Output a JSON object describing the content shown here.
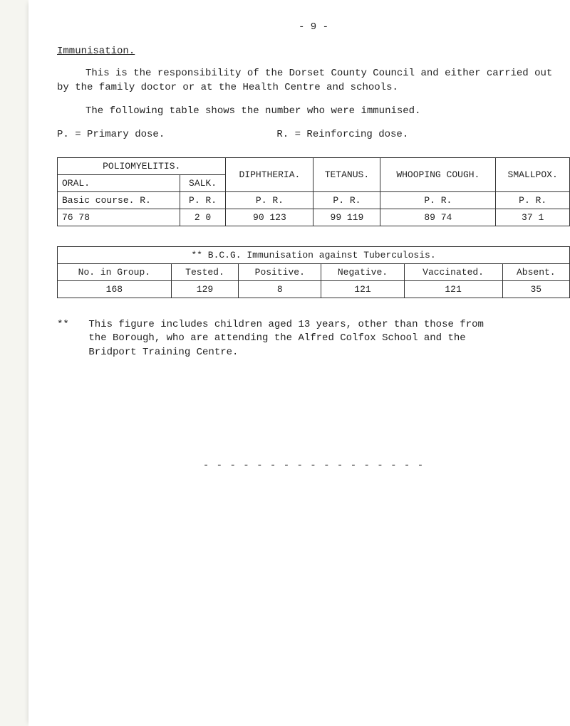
{
  "page_number": "- 9 -",
  "section_title": "Immunisation.",
  "para1": "This is the responsibility of the Dorset County Council and either carried out by the family doctor or at the Health Centre and schools.",
  "para2": "The following table shows the number who were immunised.",
  "dose_p": "P.  = Primary dose.",
  "dose_r": "R.   = Reinforcing dose.",
  "table1": {
    "headers": {
      "polio": "POLIOMYELITIS.",
      "diph": "DIPHTHERIA.",
      "tet": "TETANUS.",
      "whoop": "WHOOPING COUGH.",
      "small": "SMALLPOX.",
      "oral": "ORAL.",
      "salk": "SALK."
    },
    "row_labels": {
      "course": "Basic course.  R.",
      "salk_pr": "P.  R.",
      "pr": "P.    R."
    },
    "values": {
      "oral": "76    78",
      "salk": "2   0",
      "diph": "90    123",
      "tet": "99  119",
      "whoop": "89    74",
      "small": "37    1"
    }
  },
  "table2": {
    "banner": "** B.C.G. Immunisation against Tuberculosis.",
    "headers": {
      "group": "No. in Group.",
      "tested": "Tested.",
      "positive": "Positive.",
      "negative": "Negative.",
      "vaccinated": "Vaccinated.",
      "absent": "Absent."
    },
    "values": {
      "group": "168",
      "tested": "129",
      "positive": "8",
      "negative": "121",
      "vaccinated": "121",
      "absent": "35"
    }
  },
  "footnote_stars": "**",
  "footnote_body": "This figure includes children aged 13 years, other than those from the Borough, who are attending the Alfred Colfox School and the Bridport Training Centre.",
  "dashes": "- - - - - - - - - - - - - - - - -"
}
